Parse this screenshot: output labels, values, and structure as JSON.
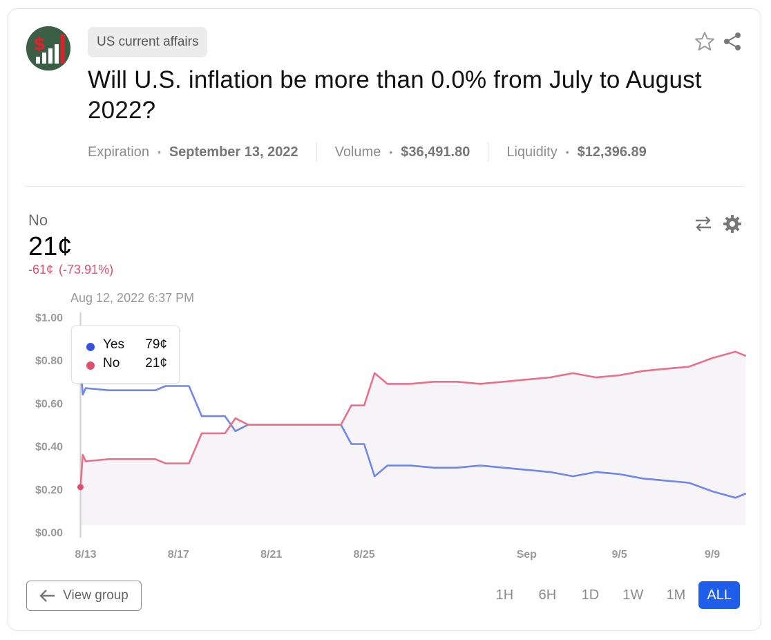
{
  "market": {
    "category": "US current affairs",
    "title": "Will U.S. inflation be more than 0.0% from July to August 2022?",
    "expiration_label": "Expiration",
    "expiration_value": "September 13, 2022",
    "volume_label": "Volume",
    "volume_value": "$36,491.80",
    "liquidity_label": "Liquidity",
    "liquidity_value": "$12,396.89",
    "meta_separator": "•"
  },
  "outcome": {
    "label": "No",
    "price": "21¢",
    "change_abs": "-61¢",
    "change_pct": "(-73.91%)"
  },
  "tooltip": {
    "rows": [
      {
        "name": "Yes",
        "value": "79¢",
        "color": "#3452e1"
      },
      {
        "name": "No",
        "value": "21¢",
        "color": "#e04f6c"
      }
    ]
  },
  "buttons": {
    "view_group": "View group"
  },
  "icons": {
    "favorite": "star-icon",
    "share": "share-icon",
    "swap": "swap-arrows-icon",
    "settings": "gear-icon",
    "back": "arrow-left-icon"
  },
  "range_tabs": [
    "1H",
    "6H",
    "1D",
    "1W",
    "1M",
    "ALL"
  ],
  "range_selected": "ALL",
  "colors": {
    "yes": "#6f86ea",
    "no": "#e7718c",
    "accent": "#1f5eea"
  },
  "chart_data": {
    "type": "line",
    "hover_label": "Aug 12, 2022 6:37 PM",
    "x_tick_labels": [
      "8/13",
      "8/17",
      "8/21",
      "8/25",
      "Sep",
      "9/5",
      "9/9"
    ],
    "y_tick_labels": [
      "$1.00",
      "$0.80",
      "$0.60",
      "$0.40",
      "$0.20",
      "$0.00"
    ],
    "ylim": [
      0,
      1
    ],
    "x": [
      "2022-08-12",
      "2022-08-12",
      "2022-08-13",
      "2022-08-14",
      "2022-08-15",
      "2022-08-16",
      "2022-08-16",
      "2022-08-17",
      "2022-08-17",
      "2022-08-18",
      "2022-08-19",
      "2022-08-19",
      "2022-08-20",
      "2022-08-21",
      "2022-08-22",
      "2022-08-23",
      "2022-08-24",
      "2022-08-24",
      "2022-08-25",
      "2022-08-25",
      "2022-08-26",
      "2022-08-27",
      "2022-08-28",
      "2022-08-29",
      "2022-08-30",
      "2022-08-31",
      "2022-09-01",
      "2022-09-02",
      "2022-09-03",
      "2022-09-04",
      "2022-09-05",
      "2022-09-06",
      "2022-09-07",
      "2022-09-08",
      "2022-09-09",
      "2022-09-10",
      "2022-09-10"
    ],
    "series": [
      {
        "name": "Yes",
        "values": [
          0.79,
          0.64,
          0.67,
          0.66,
          0.66,
          0.66,
          0.68,
          0.68,
          0.68,
          0.54,
          0.54,
          0.47,
          0.5,
          0.5,
          0.5,
          0.5,
          0.5,
          0.41,
          0.41,
          0.26,
          0.31,
          0.31,
          0.3,
          0.3,
          0.31,
          0.3,
          0.29,
          0.28,
          0.26,
          0.28,
          0.27,
          0.25,
          0.24,
          0.23,
          0.19,
          0.16,
          0.18
        ]
      },
      {
        "name": "No",
        "values": [
          0.21,
          0.36,
          0.33,
          0.34,
          0.34,
          0.34,
          0.32,
          0.32,
          0.32,
          0.46,
          0.46,
          0.53,
          0.5,
          0.5,
          0.5,
          0.5,
          0.5,
          0.59,
          0.59,
          0.74,
          0.69,
          0.69,
          0.7,
          0.7,
          0.69,
          0.7,
          0.71,
          0.72,
          0.74,
          0.72,
          0.73,
          0.75,
          0.76,
          0.77,
          0.81,
          0.84,
          0.82
        ]
      }
    ],
    "grid": false,
    "legend": "tooltip"
  }
}
